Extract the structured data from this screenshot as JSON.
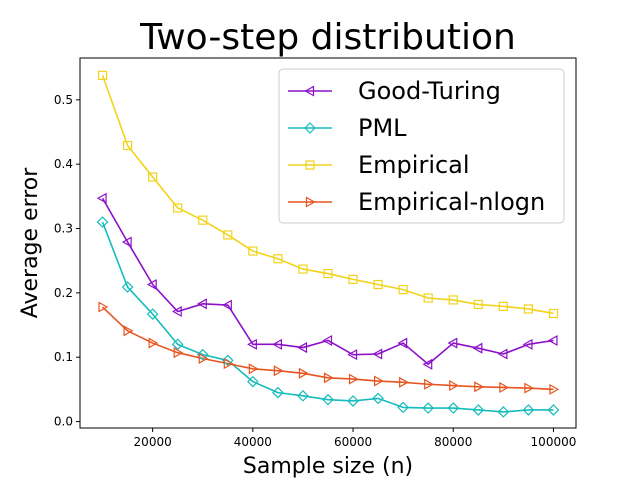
{
  "chart_data": {
    "type": "line",
    "title": "Two-step distribution",
    "xlabel": "Sample size (n)",
    "ylabel": "Average error",
    "xlim": [
      5500,
      104500
    ],
    "ylim": [
      -0.01,
      0.565
    ],
    "x_ticks": [
      20000,
      40000,
      60000,
      80000,
      100000
    ],
    "x_tick_labels": [
      "20000",
      "40000",
      "60000",
      "80000",
      "100000"
    ],
    "y_ticks": [
      0.0,
      0.1,
      0.2,
      0.3,
      0.4,
      0.5
    ],
    "y_tick_labels": [
      "0.0",
      "0.1",
      "0.2",
      "0.3",
      "0.4",
      "0.5"
    ],
    "grid": false,
    "legend_position": "upper right",
    "x": [
      10000,
      15000,
      20000,
      25000,
      30000,
      35000,
      40000,
      45000,
      50000,
      55000,
      60000,
      65000,
      70000,
      75000,
      80000,
      85000,
      90000,
      95000,
      100000
    ],
    "series": [
      {
        "name": "Good-Turing",
        "color": "#8b10c8",
        "marker": "triangle-left",
        "values": [
          0.347,
          0.279,
          0.213,
          0.171,
          0.183,
          0.181,
          0.12,
          0.12,
          0.115,
          0.126,
          0.104,
          0.105,
          0.122,
          0.089,
          0.122,
          0.114,
          0.105,
          0.12,
          0.126
        ]
      },
      {
        "name": "PML",
        "color": "#16bcbc",
        "marker": "diamond",
        "values": [
          0.31,
          0.209,
          0.167,
          0.12,
          0.104,
          0.095,
          0.062,
          0.045,
          0.04,
          0.034,
          0.032,
          0.036,
          0.022,
          0.021,
          0.021,
          0.018,
          0.015,
          0.018,
          0.018
        ]
      },
      {
        "name": "Empirical",
        "color": "#f2d31a",
        "marker": "square",
        "values": [
          0.538,
          0.429,
          0.38,
          0.332,
          0.313,
          0.29,
          0.265,
          0.253,
          0.237,
          0.23,
          0.221,
          0.213,
          0.205,
          0.192,
          0.189,
          0.182,
          0.179,
          0.175,
          0.168
        ]
      },
      {
        "name": "Empirical-nlogn",
        "color": "#e8541f",
        "marker": "triangle-right",
        "values": [
          0.178,
          0.141,
          0.122,
          0.107,
          0.098,
          0.09,
          0.082,
          0.079,
          0.075,
          0.068,
          0.066,
          0.063,
          0.061,
          0.058,
          0.056,
          0.054,
          0.053,
          0.052,
          0.05
        ]
      }
    ]
  }
}
